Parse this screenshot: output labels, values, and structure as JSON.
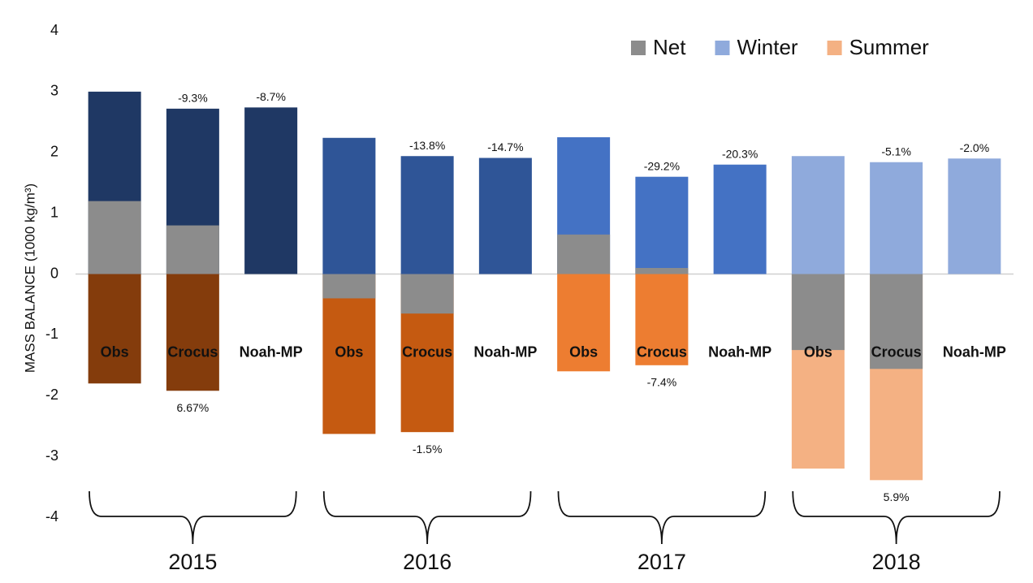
{
  "chart_data": {
    "type": "bar",
    "y_label": "MASS BALANCE (1000 kg/m³)",
    "groups": [
      "2015",
      "2016",
      "2017",
      "2018"
    ],
    "categories": [
      "Obs",
      "Crocus",
      "Noah-MP",
      "Obs",
      "Crocus",
      "Noah-MP",
      "Obs",
      "Crocus",
      "Noah-MP",
      "Obs",
      "Crocus",
      "Noah-MP"
    ],
    "series": [
      {
        "name": "Winter",
        "color": "#8faadc",
        "bar_colors": [
          "#1f3864",
          "#1f3864",
          "#1f3864",
          "#2f5597",
          "#2f5597",
          "#2f5597",
          "#4472c4",
          "#4472c4",
          "#4472c4",
          "#8faadc",
          "#8faadc",
          "#8faadc"
        ],
        "values": [
          3.0,
          2.72,
          2.74,
          2.24,
          1.94,
          1.91,
          2.25,
          1.6,
          1.8,
          1.94,
          1.84,
          1.9
        ]
      },
      {
        "name": "Summer",
        "color": "#f4b183",
        "bar_colors": [
          "#843c0c",
          "#843c0c",
          "#843c0c",
          "#c55a11",
          "#c55a11",
          "#c55a11",
          "#ed7d31",
          "#ed7d31",
          "#ed7d31",
          "#f4b183",
          "#f4b183",
          "#f4b183"
        ],
        "values": [
          -1.8,
          -1.92,
          null,
          -2.63,
          -2.6,
          null,
          -1.6,
          -1.5,
          null,
          -3.2,
          -3.39,
          null
        ]
      },
      {
        "name": "Net",
        "color": "#8c8c8c",
        "values": [
          1.2,
          0.8,
          null,
          -0.4,
          -0.65,
          null,
          0.65,
          0.1,
          null,
          -1.25,
          -1.56,
          null
        ]
      }
    ],
    "legend_order": [
      2,
      0,
      1
    ],
    "legend": "upper right",
    "top_annotations": [
      null,
      "-9.3%",
      "-8.7%",
      null,
      "-13.8%",
      "-14.7%",
      null,
      "-29.2%",
      "-20.3%",
      null,
      "-5.1%",
      "-2.0%"
    ],
    "bottom_annotations": [
      null,
      "6.67%",
      null,
      null,
      "-1.5%",
      null,
      null,
      "-7.4%",
      null,
      null,
      "5.9%",
      null
    ],
    "ylim": [
      -4,
      4
    ],
    "yticks": [
      -4,
      -3,
      -2,
      -1,
      0,
      1,
      2,
      3,
      4
    ],
    "grid": false
  }
}
